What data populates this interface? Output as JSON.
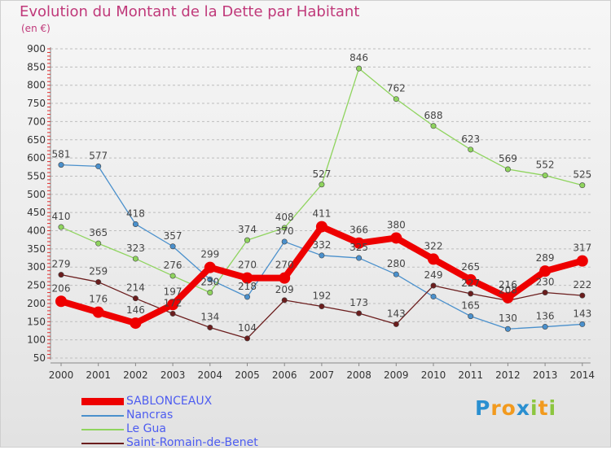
{
  "chart_data": {
    "type": "line",
    "title": "Evolution du Montant de la Dette par Habitant",
    "subtitle": "(en €)",
    "ylim": [
      50,
      900
    ],
    "yticks": [
      50,
      100,
      150,
      200,
      250,
      300,
      350,
      400,
      450,
      500,
      550,
      600,
      650,
      700,
      750,
      800,
      850,
      900
    ],
    "categories": [
      "2000",
      "2001",
      "2002",
      "2003",
      "2004",
      "2005",
      "2006",
      "2007",
      "2008",
      "2009",
      "2010",
      "2011",
      "2012",
      "2013",
      "2014"
    ],
    "grid": "dashed horizontal",
    "legend_position": "bottom-left",
    "series": [
      {
        "name": "Nancras",
        "color": "#4a90cc",
        "values": [
          581,
          577,
          418,
          357,
          266,
          218,
          370,
          332,
          325,
          280,
          219,
          165,
          130,
          136,
          143
        ],
        "labels": [
          "581",
          "577",
          "418",
          "357",
          "",
          "218",
          "370",
          "332",
          "325",
          "280",
          "",
          "165",
          "130",
          "136",
          "143"
        ]
      },
      {
        "name": "Le Gua",
        "color": "#8fd45e",
        "values": [
          410,
          365,
          323,
          276,
          230,
          374,
          408,
          527,
          846,
          762,
          688,
          623,
          569,
          552,
          525
        ],
        "labels": [
          "410",
          "365",
          "323",
          "276",
          "230",
          "374",
          "408",
          "527",
          "846",
          "762",
          "688",
          "623",
          "569",
          "552",
          "525"
        ]
      },
      {
        "name": "Saint-Romain-de-Benet",
        "color": "#6b1d1d",
        "values": [
          279,
          259,
          214,
          172,
          134,
          104,
          209,
          192,
          173,
          143,
          249,
          227,
          208,
          230,
          222
        ],
        "labels": [
          "279",
          "259",
          "214",
          "172",
          "134",
          "104",
          "209",
          "192",
          "173",
          "143",
          "249",
          "227",
          "208",
          "230",
          "222"
        ]
      },
      {
        "name": "SABLONCEAUX",
        "color": "#ee0000",
        "values": [
          206,
          176,
          146,
          197,
          299,
          270,
          270,
          411,
          366,
          380,
          322,
          265,
          216,
          289,
          317
        ],
        "labels": [
          "206",
          "176",
          "146",
          "197",
          "299",
          "270",
          "270",
          "411",
          "366",
          "380",
          "322",
          "265",
          "216",
          "289",
          "317"
        ],
        "emphasis": true
      }
    ]
  },
  "legend": {
    "items": [
      {
        "label": "SABLONCEAUX",
        "color": "#ee0000"
      },
      {
        "label": "Nancras",
        "color": "#4a90cc"
      },
      {
        "label": "Le Gua",
        "color": "#8fd45e"
      },
      {
        "label": "Saint-Romain-de-Benet",
        "color": "#6b1d1d"
      }
    ]
  },
  "logo": {
    "text": "Proxiti",
    "letters": [
      {
        "ch": "P",
        "color": "#2a8fd0"
      },
      {
        "ch": "r",
        "color": "#f29a1e"
      },
      {
        "ch": "o",
        "color": "#f29a1e"
      },
      {
        "ch": "x",
        "color": "#2a8fd0"
      },
      {
        "ch": "i",
        "color": "#8cc63f"
      },
      {
        "ch": "t",
        "color": "#f29a1e"
      },
      {
        "ch": "i",
        "color": "#8cc63f"
      }
    ]
  }
}
